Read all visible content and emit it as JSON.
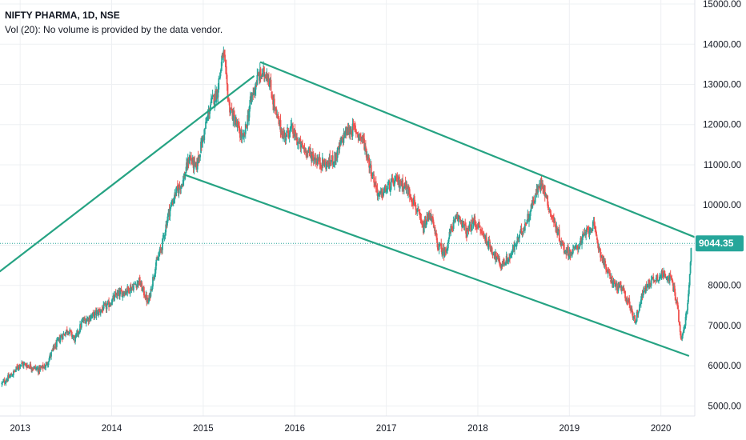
{
  "legend": {
    "title": "NIFTY PHARMA, 1D, NSE",
    "volume_note": "Vol (20): No volume is provided by the data vendor."
  },
  "colors": {
    "up": "#26a69a",
    "down": "#ef5350",
    "trendline": "#26a383",
    "grid": "#eef0f3",
    "axis_text": "#131722",
    "price_tag": "#26a69a",
    "price_line": "#26a69a"
  },
  "chart_data": {
    "type": "candlestick",
    "title": "NIFTY PHARMA, 1D, NSE",
    "x_tick_labels": [
      "2013",
      "2014",
      "2015",
      "2016",
      "2017",
      "2018",
      "2019",
      "2020"
    ],
    "y_tick_labels": [
      "5000.00",
      "6000.00",
      "7000.00",
      "8000.00",
      "9000.00",
      "10000.00",
      "11000.00",
      "12000.00",
      "13000.00",
      "14000.00",
      "15000.00"
    ],
    "y_ticks": [
      5000,
      6000,
      7000,
      8000,
      9000,
      10000,
      11000,
      12000,
      13000,
      14000,
      15000
    ],
    "ylim": [
      4750,
      15100
    ],
    "xlim": [
      2012.78,
      2020.37
    ],
    "grid": true,
    "last_price": 9044.35,
    "last_price_label": "9044.35",
    "price_path": [
      [
        2012.8,
        5550
      ],
      [
        2012.92,
        5800
      ],
      [
        2013.0,
        6050
      ],
      [
        2013.1,
        6000
      ],
      [
        2013.2,
        5900
      ],
      [
        2013.28,
        6000
      ],
      [
        2013.36,
        6400
      ],
      [
        2013.44,
        6700
      ],
      [
        2013.52,
        6900
      ],
      [
        2013.6,
        6650
      ],
      [
        2013.68,
        7100
      ],
      [
        2013.76,
        7200
      ],
      [
        2013.86,
        7350
      ],
      [
        2013.96,
        7500
      ],
      [
        2014.05,
        7750
      ],
      [
        2014.14,
        7850
      ],
      [
        2014.22,
        7950
      ],
      [
        2014.3,
        8100
      ],
      [
        2014.4,
        7550
      ],
      [
        2014.47,
        8400
      ],
      [
        2014.55,
        9000
      ],
      [
        2014.62,
        9800
      ],
      [
        2014.7,
        10300
      ],
      [
        2014.78,
        10600
      ],
      [
        2014.85,
        11200
      ],
      [
        2014.92,
        10900
      ],
      [
        2015.0,
        11700
      ],
      [
        2015.08,
        12500
      ],
      [
        2015.15,
        12800
      ],
      [
        2015.22,
        13800
      ],
      [
        2015.28,
        12500
      ],
      [
        2015.36,
        12000
      ],
      [
        2015.44,
        11600
      ],
      [
        2015.52,
        12600
      ],
      [
        2015.6,
        13200
      ],
      [
        2015.7,
        13300
      ],
      [
        2015.8,
        12200
      ],
      [
        2015.88,
        11700
      ],
      [
        2015.96,
        11900
      ],
      [
        2016.05,
        11500
      ],
      [
        2016.15,
        11300
      ],
      [
        2016.25,
        11100
      ],
      [
        2016.35,
        11000
      ],
      [
        2016.45,
        11200
      ],
      [
        2016.55,
        11800
      ],
      [
        2016.65,
        11900
      ],
      [
        2016.75,
        11600
      ],
      [
        2016.83,
        10900
      ],
      [
        2016.92,
        10200
      ],
      [
        2017.0,
        10400
      ],
      [
        2017.1,
        10600
      ],
      [
        2017.2,
        10500
      ],
      [
        2017.3,
        10100
      ],
      [
        2017.4,
        9400
      ],
      [
        2017.48,
        9800
      ],
      [
        2017.56,
        9000
      ],
      [
        2017.64,
        8800
      ],
      [
        2017.72,
        9500
      ],
      [
        2017.8,
        9700
      ],
      [
        2017.88,
        9300
      ],
      [
        2017.96,
        9600
      ],
      [
        2018.05,
        9300
      ],
      [
        2018.15,
        8900
      ],
      [
        2018.25,
        8500
      ],
      [
        2018.35,
        8700
      ],
      [
        2018.45,
        9200
      ],
      [
        2018.55,
        9700
      ],
      [
        2018.62,
        10200
      ],
      [
        2018.7,
        10600
      ],
      [
        2018.78,
        9900
      ],
      [
        2018.86,
        9400
      ],
      [
        2018.94,
        8900
      ],
      [
        2019.02,
        8800
      ],
      [
        2019.1,
        9000
      ],
      [
        2019.18,
        9300
      ],
      [
        2019.26,
        9500
      ],
      [
        2019.34,
        8800
      ],
      [
        2019.42,
        8300
      ],
      [
        2019.5,
        8000
      ],
      [
        2019.58,
        7900
      ],
      [
        2019.66,
        7500
      ],
      [
        2019.72,
        7100
      ],
      [
        2019.8,
        7800
      ],
      [
        2019.88,
        8100
      ],
      [
        2019.96,
        8200
      ],
      [
        2020.05,
        8300
      ],
      [
        2020.12,
        8100
      ],
      [
        2020.18,
        7500
      ],
      [
        2020.22,
        6600
      ],
      [
        2020.25,
        6900
      ],
      [
        2020.28,
        7300
      ],
      [
        2020.31,
        8000
      ],
      [
        2020.33,
        9044
      ]
    ],
    "trendlines": [
      {
        "from": [
          2012.78,
          8350
        ],
        "to": [
          2015.55,
          13200
        ]
      },
      {
        "from": [
          2015.63,
          13550
        ],
        "to": [
          2020.37,
          9200
        ]
      },
      {
        "from": [
          2014.8,
          10750
        ],
        "to": [
          2020.3,
          6250
        ]
      }
    ]
  }
}
